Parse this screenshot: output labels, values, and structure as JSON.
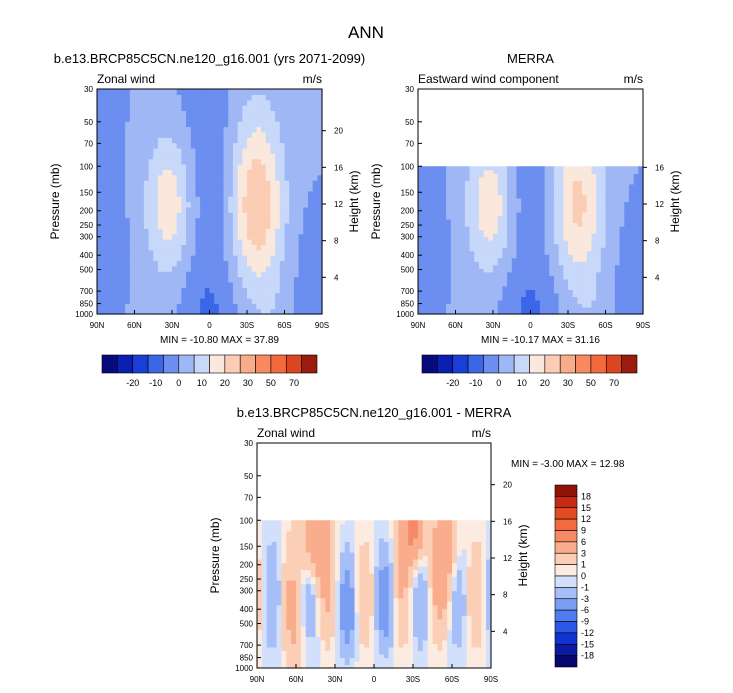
{
  "figure_title": "ANN",
  "colors": {
    "abs_palette": [
      "#0a0a80",
      "#0b1fb0",
      "#1a3fd8",
      "#3b66e8",
      "#6b8ef0",
      "#9fb8f5",
      "#c7d8fa",
      "#fbe8dc",
      "#fbcdb4",
      "#f9ac8a",
      "#f88a62",
      "#f26a3c",
      "#dd4420",
      "#9b1b10"
    ],
    "diff_palette": [
      "#07086e",
      "#0a1aa3",
      "#1133cf",
      "#2a57e6",
      "#4f7cef",
      "#7b9df4",
      "#a7bff8",
      "#d3e0fb",
      "#fcebe0",
      "#fbcfb6",
      "#f9ad8d",
      "#f78a66",
      "#f26a40",
      "#e24a22",
      "#c42b12",
      "#8f1309"
    ]
  },
  "chart_data": [
    {
      "type": "heatmap",
      "id": "model",
      "title": "b.e13.BRCP85C5CN.ne120_g16.001 (yrs 2071-2099)",
      "left_label": "Zonal wind",
      "right_label": "m/s",
      "ylabel": "Pressure (mb)",
      "ylabel2": "Height (km)",
      "xticks": [
        "90N",
        "60N",
        "30N",
        "0",
        "30S",
        "60S",
        "90S"
      ],
      "yticks": [
        30,
        50,
        70,
        100,
        150,
        200,
        250,
        300,
        400,
        500,
        700,
        850,
        1000
      ],
      "height_ticks": [
        20,
        16,
        12,
        8,
        4
      ],
      "ylim": [
        1000,
        30
      ],
      "data_top_mb": 30,
      "stats": "MIN = -10.80  MAX = 37.89",
      "contour_levels": [
        -20,
        -10,
        0,
        10,
        20,
        30,
        50,
        70
      ],
      "colorbar_labels": [
        "-20",
        "-10",
        "0",
        "10",
        "20",
        "30",
        "50",
        "70"
      ],
      "field_type": "zonal_wind",
      "max_value": 37.89
    },
    {
      "type": "heatmap",
      "id": "obs",
      "title": "MERRA",
      "left_label": "Eastward wind component",
      "right_label": "m/s",
      "ylabel": "Pressure (mb)",
      "ylabel2": "Height (km)",
      "xticks": [
        "90N",
        "60N",
        "30N",
        "0",
        "30S",
        "60S",
        "90S"
      ],
      "yticks": [
        30,
        50,
        70,
        100,
        150,
        200,
        250,
        300,
        400,
        500,
        700,
        850,
        1000
      ],
      "height_ticks": [
        16,
        12,
        8,
        4
      ],
      "ylim": [
        1000,
        30
      ],
      "data_top_mb": 100,
      "stats": "MIN = -10.17  MAX = 31.16",
      "contour_levels": [
        -20,
        -10,
        0,
        10,
        20,
        30,
        50,
        70
      ],
      "colorbar_labels": [
        "-20",
        "-10",
        "0",
        "10",
        "20",
        "30",
        "50",
        "70"
      ],
      "field_type": "zonal_wind",
      "max_value": 31.16
    },
    {
      "type": "heatmap",
      "id": "diff",
      "title": "b.e13.BRCP85C5CN.ne120_g16.001 - MERRA",
      "left_label": "Zonal wind",
      "right_label": "m/s",
      "ylabel": "Pressure (mb)",
      "ylabel2": "Height (km)",
      "xticks": [
        "90N",
        "60N",
        "30N",
        "0",
        "30S",
        "60S",
        "90S"
      ],
      "yticks": [
        30,
        50,
        70,
        100,
        150,
        200,
        250,
        300,
        400,
        500,
        700,
        850,
        1000
      ],
      "height_ticks": [
        20,
        16,
        12,
        8,
        4
      ],
      "ylim": [
        1000,
        30
      ],
      "data_top_mb": 100,
      "stats": "MIN = -3.00  MAX = 12.98",
      "contour_levels": [
        -18,
        -15,
        -12,
        -9,
        -6,
        -3,
        -1,
        0,
        1,
        3,
        6,
        9,
        12,
        15,
        18
      ],
      "colorbar_labels": [
        "18",
        "15",
        "12",
        "9",
        "6",
        "3",
        "1",
        "0",
        "-1",
        "-3",
        "-6",
        "-9",
        "-12",
        "-15",
        "-18"
      ],
      "field_type": "difference",
      "max_value": 12.98
    }
  ]
}
